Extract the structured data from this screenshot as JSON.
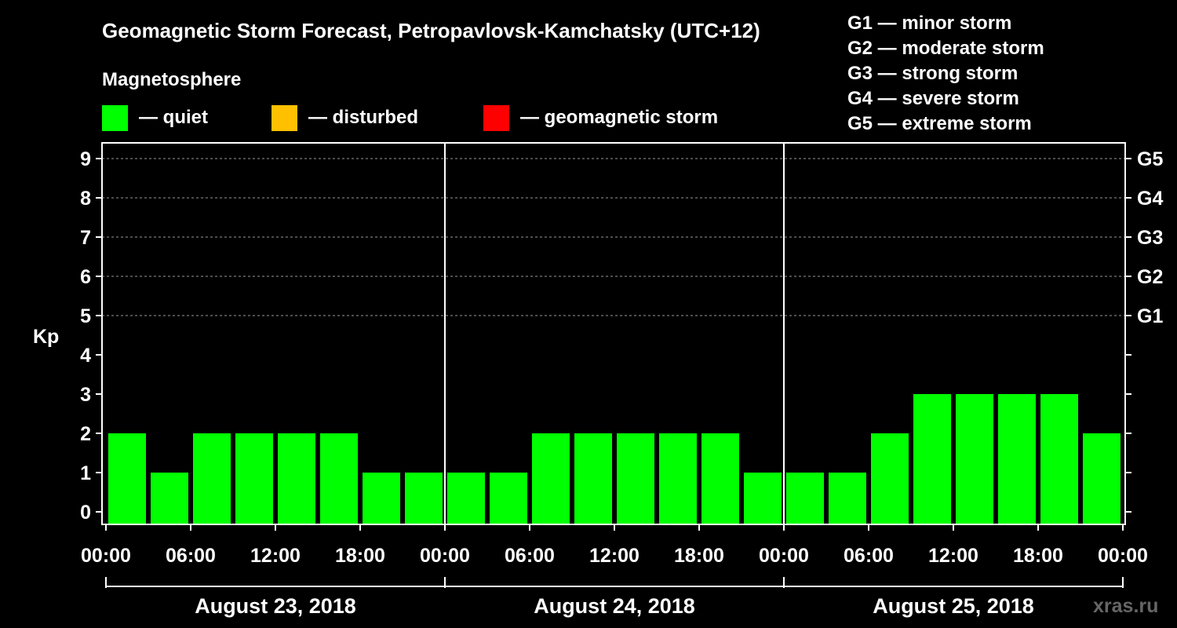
{
  "chart_data": {
    "type": "bar",
    "title": "Geomagnetic Storm Forecast, Petropavlovsk-Kamchatsky (UTC+12)",
    "ylabel": "Kp",
    "ylim": [
      0,
      9
    ],
    "yticks": [
      "0",
      "1",
      "2",
      "3",
      "4",
      "5",
      "6",
      "7",
      "8",
      "9"
    ],
    "right_ticks": [
      {
        "kp": 5,
        "label": "G1"
      },
      {
        "kp": 6,
        "label": "G2"
      },
      {
        "kp": 7,
        "label": "G3"
      },
      {
        "kp": 8,
        "label": "G4"
      },
      {
        "kp": 9,
        "label": "G5"
      }
    ],
    "grid": "dashed at Kp 5-9",
    "xtick_labels": [
      "00:00",
      "06:00",
      "12:00",
      "18:00",
      "00:00",
      "06:00",
      "12:00",
      "18:00",
      "00:00",
      "06:00",
      "12:00",
      "18:00",
      "00:00"
    ],
    "days": [
      "August 23, 2018",
      "August 24, 2018",
      "August 25, 2018"
    ],
    "interval_hours": 3,
    "values": [
      2,
      1,
      2,
      2,
      2,
      2,
      1,
      1,
      1,
      1,
      2,
      2,
      2,
      2,
      2,
      1,
      1,
      1,
      2,
      3,
      3,
      3,
      3,
      2
    ],
    "legend_heading": "Magnetosphere",
    "legend": [
      {
        "label": "— quiet",
        "color": "#00ff00"
      },
      {
        "label": "— disturbed",
        "color": "#ffc000"
      },
      {
        "label": "— geomagnetic storm",
        "color": "#ff0000"
      }
    ],
    "storm_scale": [
      "G1 — minor storm",
      "G2 — moderate storm",
      "G3 — strong storm",
      "G4 — severe storm",
      "G5 — extreme storm"
    ],
    "watermark": "xras.ru"
  }
}
